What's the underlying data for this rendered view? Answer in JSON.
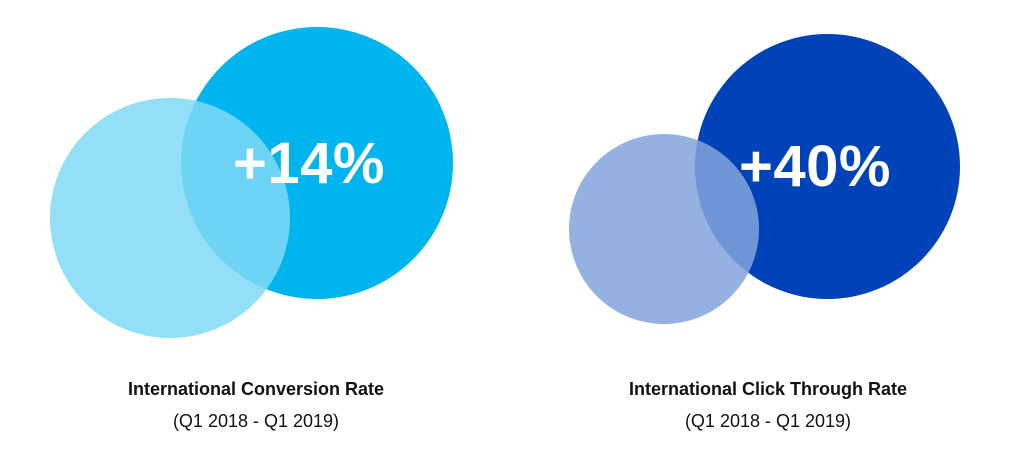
{
  "metrics": [
    {
      "value": "+14%",
      "title": "International Conversion Rate",
      "period": "(Q1 2018 - Q1 2019)",
      "colors": {
        "large_circle": "#00b4ee",
        "small_circle": "#80d9f6",
        "overlap": "#38c6f2"
      }
    },
    {
      "value": "+40%",
      "title": "International Click Through Rate",
      "period": "(Q1 2018 - Q1 2019)",
      "colors": {
        "large_circle": "#0043b9",
        "small_circle": "#82a3dc",
        "overlap": "#3a6ec8"
      }
    }
  ]
}
